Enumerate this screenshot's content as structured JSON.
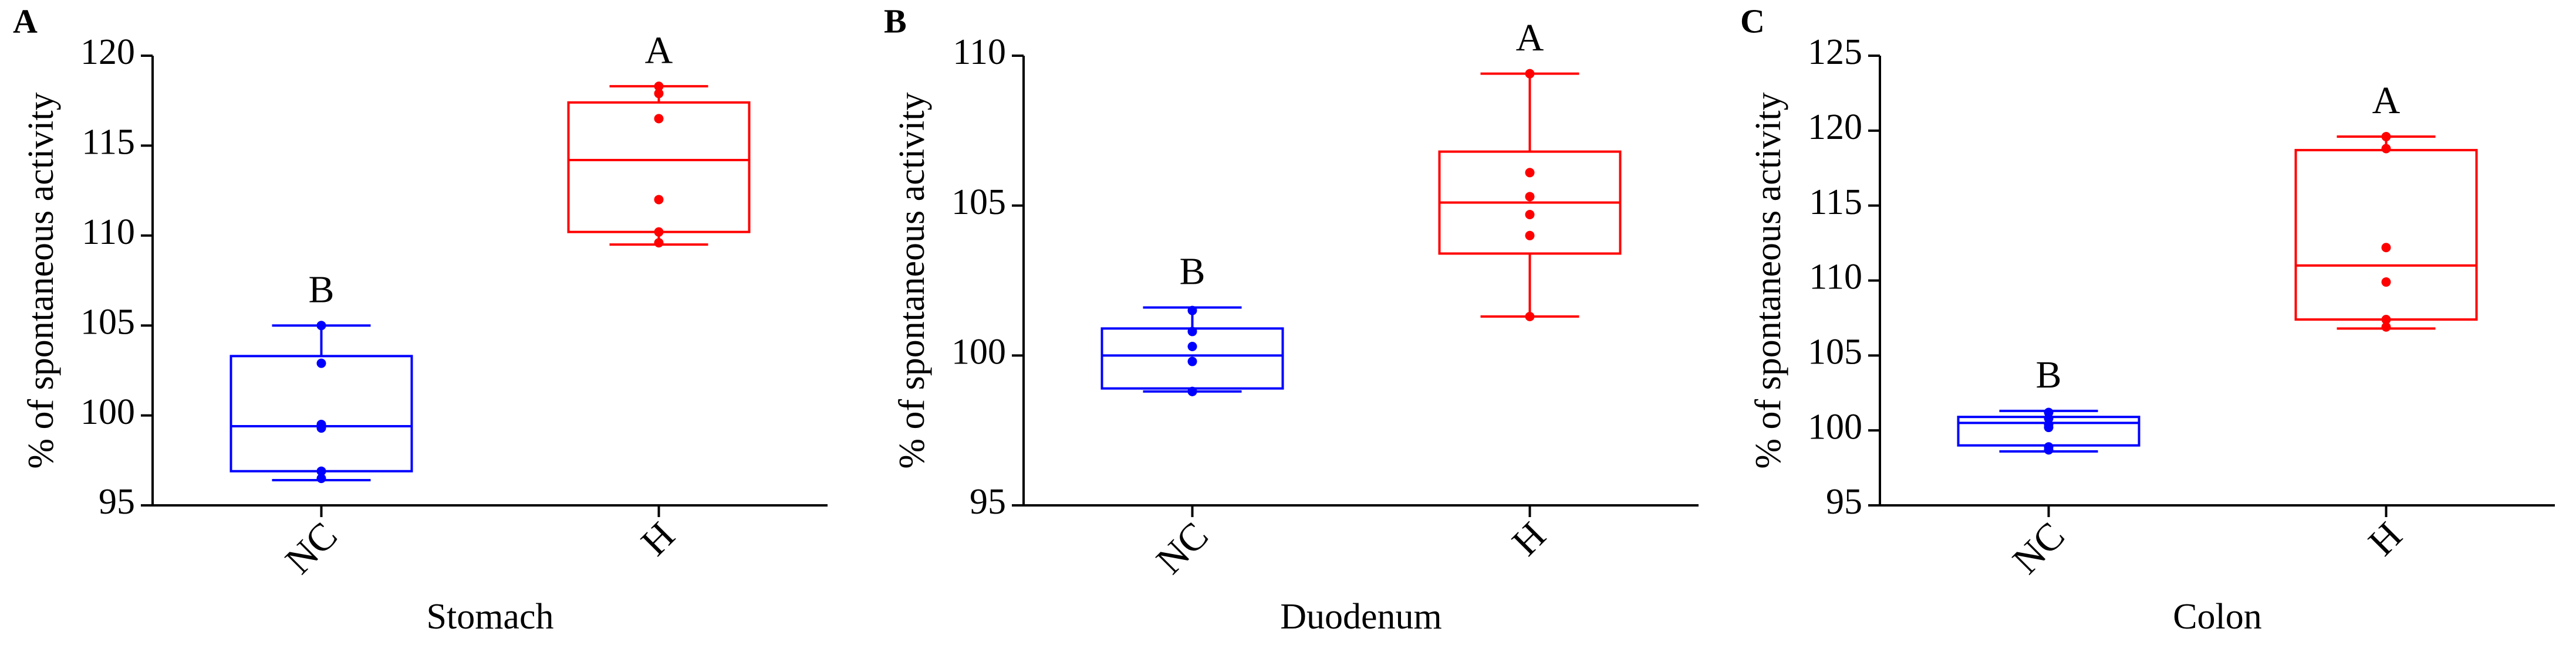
{
  "chart_data": [
    {
      "type": "box",
      "panel": "A",
      "x_label": "Stomach",
      "y_label": "% of spontaneous activity",
      "ylim": [
        95,
        120
      ],
      "yticks": [
        95,
        100,
        105,
        110,
        115,
        120
      ],
      "boxes": [
        {
          "name": "NC",
          "color": "#0000ff",
          "letter": "B",
          "whisker_low": 96.4,
          "q1": 96.9,
          "median": 99.4,
          "q3": 103.3,
          "whisker_high": 105.0,
          "points": [
            105.0,
            102.9,
            99.5,
            99.3,
            96.9,
            96.5
          ]
        },
        {
          "name": "H",
          "color": "#ff0000",
          "letter": "A",
          "whisker_low": 109.5,
          "q1": 110.2,
          "median": 114.2,
          "q3": 117.4,
          "whisker_high": 118.3,
          "points": [
            118.3,
            117.9,
            116.5,
            112.0,
            110.2,
            109.6
          ]
        }
      ]
    },
    {
      "type": "box",
      "panel": "B",
      "x_label": "Duodenum",
      "y_label": "% of spontaneous activity",
      "ylim": [
        95,
        110
      ],
      "yticks": [
        95,
        100,
        105,
        110
      ],
      "boxes": [
        {
          "name": "NC",
          "color": "#0000ff",
          "letter": "B",
          "whisker_low": 98.8,
          "q1": 98.9,
          "median": 100.0,
          "q3": 100.9,
          "whisker_high": 101.6,
          "points": [
            101.5,
            100.8,
            100.3,
            99.8,
            98.8,
            98.8
          ]
        },
        {
          "name": "H",
          "color": "#ff0000",
          "letter": "A",
          "whisker_low": 101.3,
          "q1": 103.4,
          "median": 105.1,
          "q3": 106.8,
          "whisker_high": 109.4,
          "points": [
            109.4,
            106.1,
            105.3,
            104.7,
            104.0,
            101.3
          ]
        }
      ]
    },
    {
      "type": "box",
      "panel": "C",
      "x_label": "Colon",
      "y_label": "% of spontaneous activity",
      "ylim": [
        95,
        125
      ],
      "yticks": [
        95,
        100,
        105,
        110,
        115,
        120,
        125
      ],
      "boxes": [
        {
          "name": "NC",
          "color": "#0000ff",
          "letter": "B",
          "whisker_low": 98.6,
          "q1": 99.0,
          "median": 100.5,
          "q3": 100.9,
          "whisker_high": 101.3,
          "points": [
            101.2,
            100.8,
            100.4,
            100.2,
            98.9,
            98.7
          ]
        },
        {
          "name": "H",
          "color": "#ff0000",
          "letter": "A",
          "whisker_low": 106.8,
          "q1": 107.4,
          "median": 111.0,
          "q3": 118.7,
          "whisker_high": 119.6,
          "points": [
            119.6,
            118.8,
            112.2,
            109.9,
            107.4,
            106.9
          ]
        }
      ]
    }
  ]
}
